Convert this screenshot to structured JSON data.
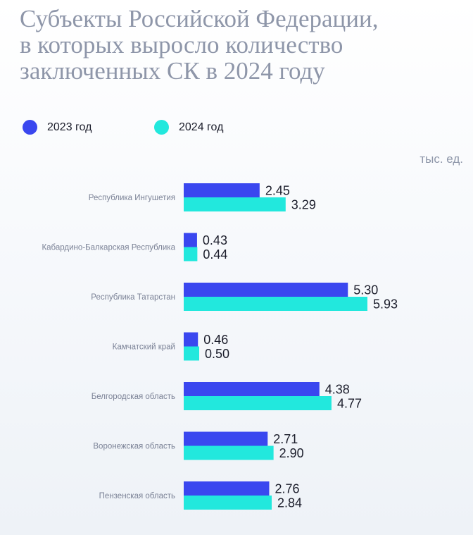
{
  "title_lines": [
    "Субъекты Российской Федерации,",
    "в которых выросло количество",
    "заключенных СК в 2024 году"
  ],
  "unit": "тыс. ед.",
  "colors": {
    "series_2023": "#3a47ef",
    "series_2024": "#22e8dd"
  },
  "chart_data": {
    "type": "bar",
    "orientation": "horizontal",
    "title": "Субъекты Российской Федерации, в которых выросло количество заключенных СК в 2024 году",
    "unit": "тыс. ед.",
    "categories": [
      "Республика Ингушетия",
      "Кабардино-Балкарская Республика",
      "Республика Татарстан",
      "Камчатский край",
      "Белгородская область",
      "Воронежская область",
      "Пензенская область"
    ],
    "series": [
      {
        "name": "2023 год",
        "values": [
          2.45,
          0.43,
          5.3,
          0.46,
          4.38,
          2.71,
          2.76
        ],
        "labels": [
          "2.45",
          "0.43",
          "5.30",
          "0.46",
          "4.38",
          "2.71",
          "2.76"
        ]
      },
      {
        "name": "2024 год",
        "values": [
          3.29,
          0.44,
          5.93,
          0.5,
          4.77,
          2.9,
          2.84
        ],
        "labels": [
          "3.29",
          "0.44",
          "5.93",
          "0.50",
          "4.77",
          "2.90",
          "2.84"
        ]
      }
    ],
    "xlim": [
      0,
      5.93
    ],
    "grid": false,
    "legend": "top-left"
  }
}
